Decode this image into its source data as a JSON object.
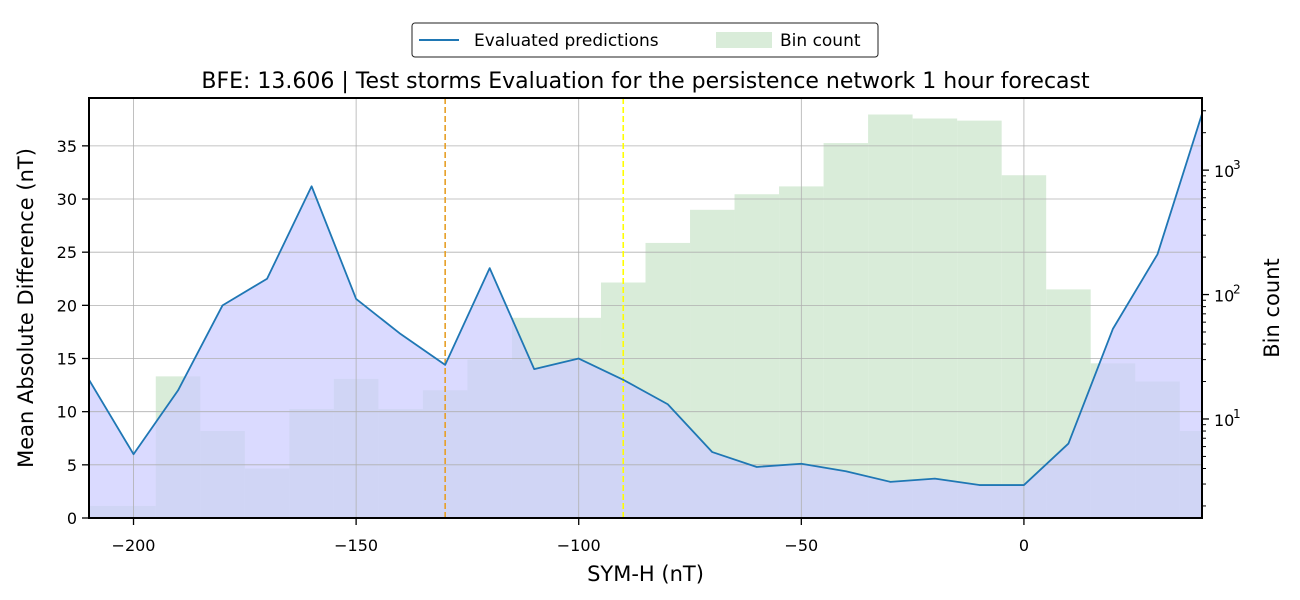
{
  "colors": {
    "line": "#1f77b4",
    "line_fill": "#ccccff",
    "bar": "#d9ecd9",
    "marker_orange": "#e69f26",
    "marker_yellow": "#ffff00"
  },
  "chart_data": {
    "type": "line",
    "title": "BFE: 13.606 | Test storms Evaluation for the persistence network 1 hour forecast",
    "xlabel": "SYM-H (nT)",
    "ylabel": "Mean Absolute Difference (nT)",
    "y2label": "Bin count",
    "xlim": [
      -210,
      40
    ],
    "ylim": [
      0,
      39.5
    ],
    "y2_scale": "log",
    "y2lim": [
      1.6,
      3800
    ],
    "grid": true,
    "legend_position": "top-center",
    "x_ticks": [
      -200,
      -150,
      -100,
      -50,
      0
    ],
    "x_tick_labels": [
      "−200",
      "−150",
      "−100",
      "−50",
      "0"
    ],
    "y_ticks": [
      0,
      5,
      10,
      15,
      20,
      25,
      30,
      35
    ],
    "y_tick_labels": [
      "0",
      "5",
      "10",
      "15",
      "20",
      "25",
      "30",
      "35"
    ],
    "y2_major_ticks": [
      10,
      100,
      1000
    ],
    "y2_tick_labels": {
      "base": "10",
      "exponents": [
        "1",
        "2",
        "3"
      ]
    },
    "legend": {
      "line_label": "Evaluated predictions",
      "bar_label": "Bin count"
    },
    "series": [
      {
        "name": "Evaluated predictions",
        "x": [
          -210,
          -200,
          -190,
          -180,
          -170,
          -160,
          -150,
          -140,
          -130,
          -120,
          -110,
          -100,
          -90,
          -80,
          -70,
          -60,
          -50,
          -40,
          -30,
          -20,
          -10,
          0,
          10,
          20,
          30,
          40
        ],
        "values": [
          13.0,
          6.0,
          12.0,
          20.0,
          22.5,
          31.2,
          20.6,
          17.3,
          14.4,
          23.5,
          14.0,
          15.0,
          13.0,
          10.7,
          6.2,
          4.8,
          5.1,
          4.4,
          3.4,
          3.7,
          3.1,
          3.1,
          7.0,
          17.8,
          24.8,
          38.0
        ]
      },
      {
        "name": "Bin count",
        "type": "bar",
        "bin_edges": [
          -210,
          -195,
          -185,
          -175,
          -165,
          -155,
          -145,
          -135,
          -125,
          -115,
          -95,
          -85,
          -75,
          -65,
          -55,
          -45,
          -35,
          -25,
          -15,
          -5,
          5,
          15,
          25,
          35,
          40
        ],
        "counts": [
          2,
          22,
          8,
          4,
          12,
          21,
          12,
          17,
          30,
          65,
          125,
          260,
          480,
          640,
          740,
          1650,
          2800,
          2600,
          2500,
          910,
          110,
          28,
          20,
          8
        ]
      }
    ],
    "vertical_markers": [
      {
        "x": -130,
        "color": "#e69f26"
      },
      {
        "x": -90,
        "color": "#ffff00"
      }
    ]
  }
}
